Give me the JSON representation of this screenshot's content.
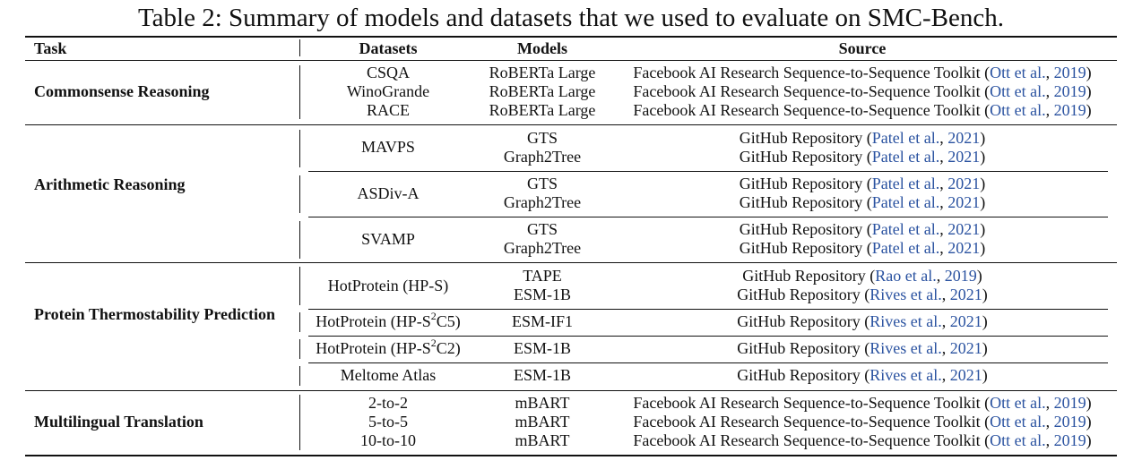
{
  "caption": "Table 2: Summary of models and datasets that we used to evaluate on SMC-Bench.",
  "headers": {
    "task": "Task",
    "datasets": "Datasets",
    "models": "Models",
    "source": "Source"
  },
  "groups": [
    {
      "task": "Commonsense Reasoning",
      "rows": [
        {
          "dataset": "CSQA",
          "model": "RoBERTa Large",
          "source_text": "Facebook AI Research Sequence-to-Sequence Toolkit",
          "cite_author": "Ott et al.",
          "cite_year": "2019"
        },
        {
          "dataset": "WinoGrande",
          "model": "RoBERTa Large",
          "source_text": "Facebook AI Research Sequence-to-Sequence Toolkit",
          "cite_author": "Ott et al.",
          "cite_year": "2019"
        },
        {
          "dataset": "RACE",
          "model": "RoBERTa Large",
          "source_text": "Facebook AI Research Sequence-to-Sequence Toolkit",
          "cite_author": "Ott et al.",
          "cite_year": "2019"
        }
      ]
    },
    {
      "task": "Arithmetic Reasoning",
      "subgroups": [
        {
          "dataset": "MAVPS",
          "rows": [
            {
              "model": "GTS",
              "source_text": "GitHub Repository",
              "cite_author": "Patel et al.",
              "cite_year": "2021"
            },
            {
              "model": "Graph2Tree",
              "source_text": "GitHub Repository",
              "cite_author": "Patel et al.",
              "cite_year": "2021"
            }
          ]
        },
        {
          "dataset": "ASDiv-A",
          "rows": [
            {
              "model": "GTS",
              "source_text": "GitHub Repository",
              "cite_author": "Patel et al.",
              "cite_year": "2021"
            },
            {
              "model": "Graph2Tree",
              "source_text": "GitHub Repository",
              "cite_author": "Patel et al.",
              "cite_year": "2021"
            }
          ]
        },
        {
          "dataset": "SVAMP",
          "rows": [
            {
              "model": "GTS",
              "source_text": "GitHub Repository",
              "cite_author": "Patel et al.",
              "cite_year": "2021"
            },
            {
              "model": "Graph2Tree",
              "source_text": "GitHub Repository",
              "cite_author": "Patel et al.",
              "cite_year": "2021"
            }
          ]
        }
      ]
    },
    {
      "task": "Protein Thermostability Prediction",
      "subgroups": [
        {
          "dataset": "HotProtein (HP-S)",
          "rows": [
            {
              "model": "TAPE",
              "source_text": "GitHub Repository",
              "cite_author": "Rao et al.",
              "cite_year": "2019"
            },
            {
              "model": "ESM-1B",
              "source_text": "GitHub Repository",
              "cite_author": "Rives et al.",
              "cite_year": "2021"
            }
          ]
        },
        {
          "dataset_pre": "HotProtein (HP-S",
          "dataset_sup": "2",
          "dataset_post": "C5)",
          "rows": [
            {
              "model": "ESM-IF1",
              "source_text": "GitHub Repository",
              "cite_author": "Rives et al.",
              "cite_year": "2021"
            }
          ]
        },
        {
          "dataset_pre": "HotProtein (HP-S",
          "dataset_sup": "2",
          "dataset_post": "C2)",
          "rows": [
            {
              "model": "ESM-1B",
              "source_text": "GitHub Repository",
              "cite_author": "Rives et al.",
              "cite_year": "2021"
            }
          ]
        },
        {
          "dataset": "Meltome Atlas",
          "rows": [
            {
              "model": "ESM-1B",
              "source_text": "GitHub Repository",
              "cite_author": "Rives et al.",
              "cite_year": "2021"
            }
          ]
        }
      ]
    },
    {
      "task": "Multilingual Translation",
      "rows": [
        {
          "dataset": "2-to-2",
          "model": "mBART",
          "source_text": "Facebook AI Research Sequence-to-Sequence Toolkit",
          "cite_author": "Ott et al.",
          "cite_year": "2019"
        },
        {
          "dataset": "5-to-5",
          "model": "mBART",
          "source_text": "Facebook AI Research Sequence-to-Sequence Toolkit",
          "cite_author": "Ott et al.",
          "cite_year": "2019"
        },
        {
          "dataset": "10-to-10",
          "model": "mBART",
          "source_text": "Facebook AI Research Sequence-to-Sequence Toolkit",
          "cite_author": "Ott et al.",
          "cite_year": "2019"
        }
      ]
    }
  ]
}
